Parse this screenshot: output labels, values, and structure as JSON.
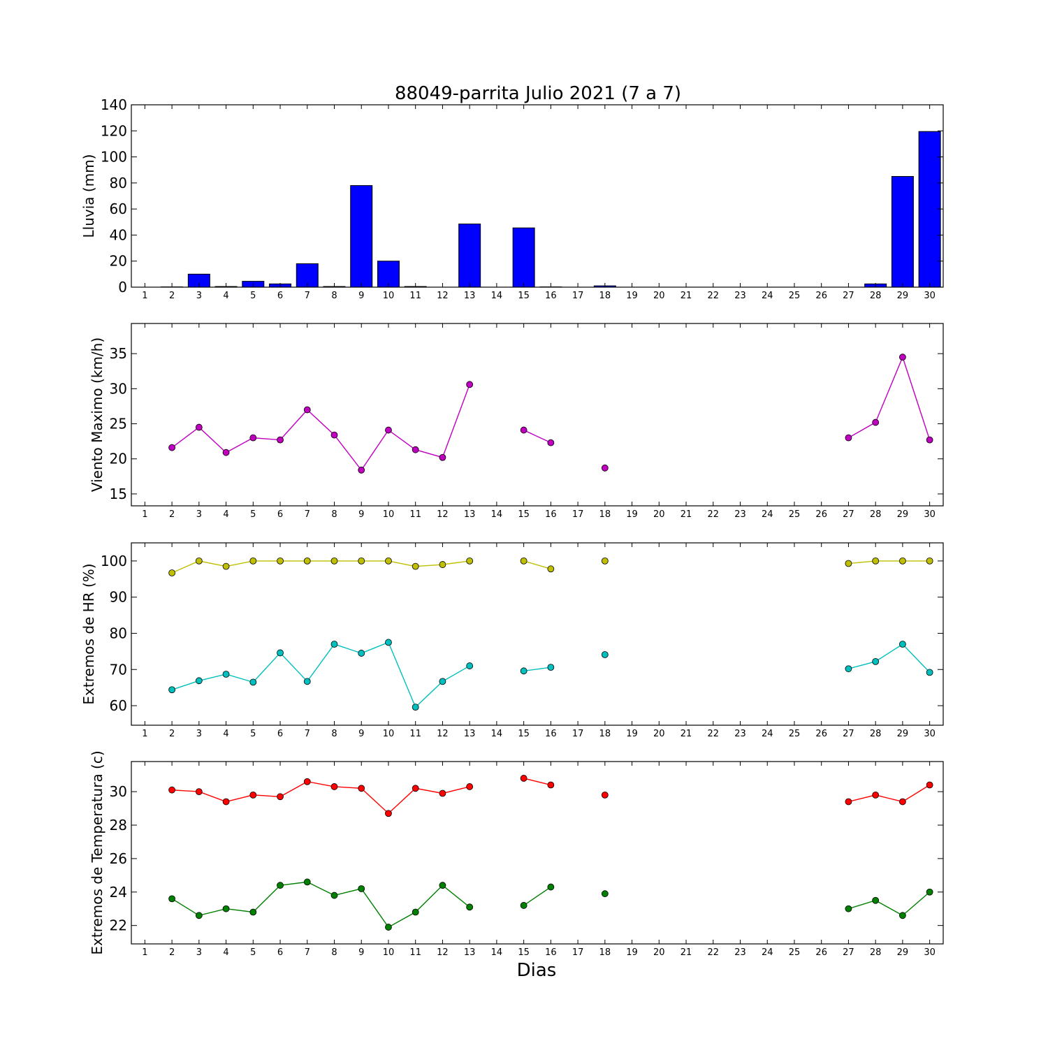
{
  "figure": {
    "title": "88049-parrita Julio 2021  (7 a 7)",
    "xlabel": "Dias"
  },
  "chart_data": [
    {
      "type": "bar",
      "ylabel": "Lluvia (mm)",
      "ylim": [
        0,
        140
      ],
      "yticks": [
        0,
        20,
        40,
        60,
        80,
        100,
        120,
        140
      ],
      "xticks": [
        1,
        2,
        3,
        4,
        5,
        6,
        7,
        8,
        9,
        10,
        11,
        12,
        13,
        14,
        15,
        16,
        17,
        18,
        19,
        20,
        21,
        22,
        23,
        24,
        25,
        26,
        27,
        28,
        29,
        30
      ],
      "grid": false,
      "series": [
        {
          "color": "#0000ff",
          "x": [
            2,
            3,
            4,
            5,
            6,
            7,
            8,
            9,
            10,
            11,
            13,
            15,
            16,
            18,
            28,
            29,
            30
          ],
          "values": [
            0.2,
            10,
            0.5,
            4.5,
            2.5,
            18,
            0.5,
            78,
            20,
            0.5,
            48.5,
            45.5,
            0.2,
            1,
            2.5,
            85,
            119.5
          ]
        }
      ]
    },
    {
      "type": "line",
      "ylabel": "Viento Maximo (km/h)",
      "ylim": [
        13.3,
        39.3
      ],
      "yticks": [
        15,
        20,
        25,
        30,
        35
      ],
      "xticks": [
        1,
        2,
        3,
        4,
        5,
        6,
        7,
        8,
        9,
        10,
        11,
        12,
        13,
        14,
        15,
        16,
        17,
        18,
        19,
        20,
        21,
        22,
        23,
        24,
        25,
        26,
        27,
        28,
        29,
        30
      ],
      "grid": false,
      "series": [
        {
          "color": "#bf00bf",
          "x": [
            1,
            2,
            3,
            4,
            5,
            6,
            7,
            8,
            9,
            10,
            11,
            12,
            13,
            14,
            15,
            16,
            17,
            18,
            19,
            20,
            21,
            22,
            23,
            24,
            25,
            26,
            27,
            28,
            29,
            30
          ],
          "values": [
            null,
            21.6,
            24.5,
            20.9,
            23,
            22.7,
            27,
            23.4,
            18.4,
            24.1,
            21.3,
            20.2,
            30.6,
            null,
            24.1,
            22.3,
            null,
            18.7,
            null,
            null,
            null,
            null,
            null,
            null,
            null,
            null,
            23,
            25.2,
            34.5,
            22.7
          ]
        }
      ]
    },
    {
      "type": "line",
      "ylabel": "Extremos de HR (%)",
      "ylim": [
        54.6,
        105
      ],
      "yticks": [
        60,
        70,
        80,
        90,
        100
      ],
      "xticks": [
        1,
        2,
        3,
        4,
        5,
        6,
        7,
        8,
        9,
        10,
        11,
        12,
        13,
        14,
        15,
        16,
        17,
        18,
        19,
        20,
        21,
        22,
        23,
        24,
        25,
        26,
        27,
        28,
        29,
        30
      ],
      "grid": false,
      "series": [
        {
          "color": "#bfbf00",
          "x": [
            1,
            2,
            3,
            4,
            5,
            6,
            7,
            8,
            9,
            10,
            11,
            12,
            13,
            14,
            15,
            16,
            17,
            18,
            19,
            20,
            21,
            22,
            23,
            24,
            25,
            26,
            27,
            28,
            29,
            30
          ],
          "values": [
            null,
            96.7,
            100,
            98.5,
            100,
            100,
            100,
            100,
            100,
            100,
            98.5,
            99,
            100,
            null,
            100,
            97.8,
            null,
            100,
            null,
            null,
            null,
            null,
            null,
            null,
            null,
            null,
            99.3,
            100,
            100,
            100
          ]
        },
        {
          "color": "#00bfbf",
          "x": [
            1,
            2,
            3,
            4,
            5,
            6,
            7,
            8,
            9,
            10,
            11,
            12,
            13,
            14,
            15,
            16,
            17,
            18,
            19,
            20,
            21,
            22,
            23,
            24,
            25,
            26,
            27,
            28,
            29,
            30
          ],
          "values": [
            null,
            64.4,
            66.9,
            68.7,
            66.5,
            74.6,
            66.7,
            77,
            74.5,
            77.5,
            59.6,
            66.7,
            71,
            null,
            69.6,
            70.6,
            null,
            74.1,
            null,
            null,
            null,
            null,
            null,
            null,
            null,
            null,
            70.2,
            72.2,
            77,
            69.2
          ]
        }
      ]
    },
    {
      "type": "line",
      "ylabel": "Extremos de Temperatura (c)",
      "ylim": [
        20.9,
        31.8
      ],
      "yticks": [
        22,
        24,
        26,
        28,
        30
      ],
      "xticks": [
        1,
        2,
        3,
        4,
        5,
        6,
        7,
        8,
        9,
        10,
        11,
        12,
        13,
        14,
        15,
        16,
        17,
        18,
        19,
        20,
        21,
        22,
        23,
        24,
        25,
        26,
        27,
        28,
        29,
        30
      ],
      "grid": false,
      "series": [
        {
          "color": "#ff0000",
          "x": [
            1,
            2,
            3,
            4,
            5,
            6,
            7,
            8,
            9,
            10,
            11,
            12,
            13,
            14,
            15,
            16,
            17,
            18,
            19,
            20,
            21,
            22,
            23,
            24,
            25,
            26,
            27,
            28,
            29,
            30
          ],
          "values": [
            null,
            30.1,
            30,
            29.4,
            29.8,
            29.7,
            30.6,
            30.3,
            30.2,
            28.7,
            30.2,
            29.9,
            30.3,
            null,
            30.8,
            30.4,
            null,
            29.8,
            null,
            null,
            null,
            null,
            null,
            null,
            null,
            null,
            29.4,
            29.8,
            29.4,
            30.4
          ]
        },
        {
          "color": "#008000",
          "x": [
            1,
            2,
            3,
            4,
            5,
            6,
            7,
            8,
            9,
            10,
            11,
            12,
            13,
            14,
            15,
            16,
            17,
            18,
            19,
            20,
            21,
            22,
            23,
            24,
            25,
            26,
            27,
            28,
            29,
            30
          ],
          "values": [
            null,
            23.6,
            22.6,
            23,
            22.8,
            24.4,
            24.6,
            23.8,
            24.2,
            21.9,
            22.8,
            24.4,
            23.1,
            null,
            23.2,
            24.3,
            null,
            23.9,
            null,
            null,
            null,
            null,
            null,
            null,
            null,
            null,
            23,
            23.5,
            22.6,
            24
          ]
        }
      ]
    }
  ]
}
